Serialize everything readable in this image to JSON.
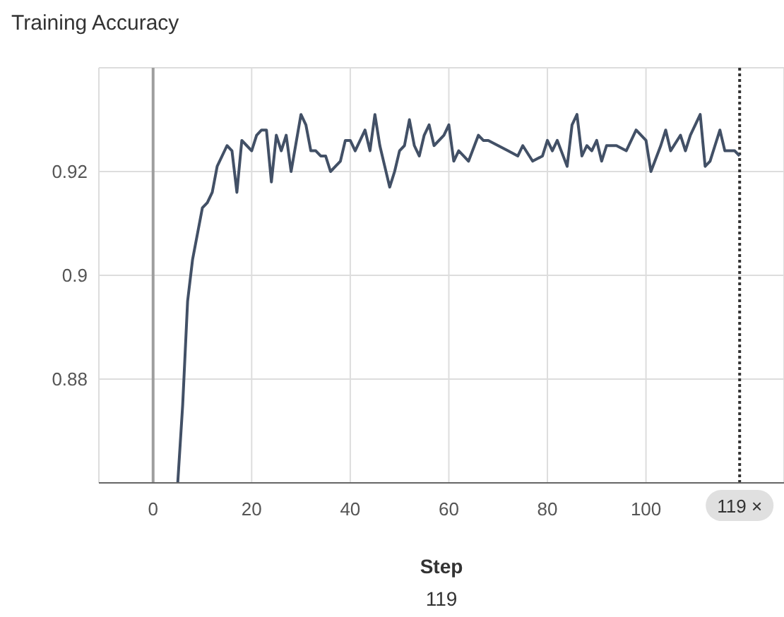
{
  "chart_data": {
    "type": "line",
    "title": "Training Accuracy",
    "xlabel": "Step",
    "annotations": [
      "119"
    ],
    "x": [
      5,
      6,
      7,
      8,
      10,
      11,
      12,
      13,
      15,
      16,
      17,
      18,
      19,
      20,
      21,
      22,
      23,
      24,
      25,
      26,
      27,
      28,
      30,
      31,
      32,
      33,
      34,
      35,
      36,
      37,
      38,
      39,
      40,
      41,
      42,
      43,
      44,
      45,
      46,
      47,
      48,
      49,
      50,
      51,
      52,
      53,
      54,
      55,
      56,
      57,
      59,
      60,
      61,
      62,
      63,
      64,
      66,
      67,
      68,
      70,
      72,
      74,
      75,
      77,
      79,
      80,
      81,
      82,
      84,
      85,
      86,
      87,
      88,
      89,
      90,
      91,
      92,
      94,
      96,
      98,
      100,
      101,
      103,
      104,
      105,
      107,
      108,
      109,
      111,
      112,
      113,
      115,
      116,
      118,
      119
    ],
    "series": [
      {
        "color": "#425066",
        "values": [
          0.86,
          0.875,
          0.895,
          0.903,
          0.913,
          0.914,
          0.916,
          0.921,
          0.925,
          0.924,
          0.916,
          0.926,
          0.925,
          0.924,
          0.927,
          0.928,
          0.928,
          0.918,
          0.927,
          0.924,
          0.927,
          0.92,
          0.931,
          0.929,
          0.924,
          0.924,
          0.923,
          0.923,
          0.92,
          0.921,
          0.922,
          0.926,
          0.926,
          0.924,
          0.926,
          0.928,
          0.924,
          0.931,
          0.925,
          0.921,
          0.917,
          0.92,
          0.924,
          0.925,
          0.93,
          0.925,
          0.923,
          0.927,
          0.929,
          0.925,
          0.927,
          0.929,
          0.922,
          0.924,
          0.923,
          0.922,
          0.927,
          0.926,
          0.926,
          0.925,
          0.924,
          0.923,
          0.925,
          0.922,
          0.923,
          0.926,
          0.924,
          0.926,
          0.921,
          0.929,
          0.931,
          0.923,
          0.925,
          0.924,
          0.926,
          0.922,
          0.925,
          0.925,
          0.924,
          0.928,
          0.926,
          0.92,
          0.925,
          0.928,
          0.924,
          0.927,
          0.924,
          0.927,
          0.931,
          0.921,
          0.922,
          0.928,
          0.924,
          0.924,
          0.923
        ]
      }
    ],
    "xlim": [
      -11,
      128
    ],
    "xticks": [
      0,
      20,
      40,
      60,
      80,
      100
    ],
    "ylim": [
      0.86,
      0.94
    ],
    "yticks": [
      0.88,
      0.9,
      0.92
    ],
    "grid": true,
    "marker": "none",
    "line_style": "solid",
    "ref_lines": [
      {
        "axis": "x",
        "value": 0,
        "color": "#9e9e9e",
        "line_style": "solid"
      },
      {
        "axis": "x",
        "value": 119,
        "label": "119 ×",
        "color": "#333333",
        "line_style": "dotted"
      }
    ]
  }
}
